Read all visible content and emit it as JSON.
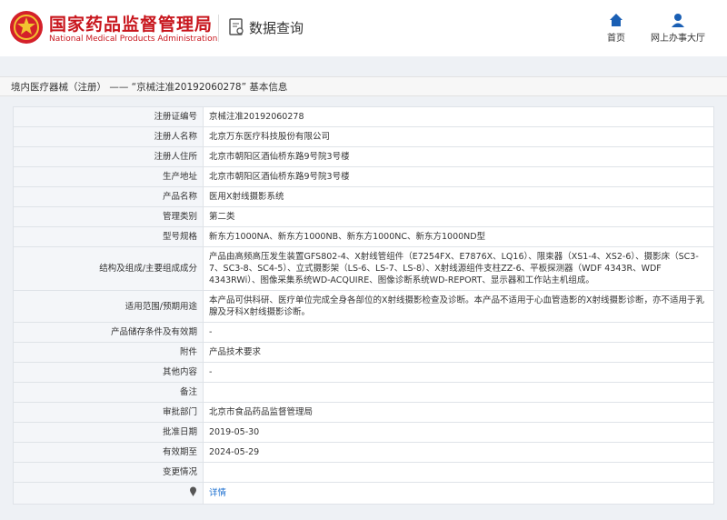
{
  "header": {
    "title": "国家药品监督管理局",
    "subtitle": "National Medical Products Administration",
    "section": "数据查询",
    "nav": [
      "首页",
      "网上办事大厅"
    ]
  },
  "breadcrumb": "境内医疗器械（注册） —— “京械注准20192060278” 基本信息",
  "table": {
    "rows": [
      {
        "label": "注册证编号",
        "value": "京械注准20192060278"
      },
      {
        "label": "注册人名称",
        "value": "北京万东医疗科技股份有限公司"
      },
      {
        "label": "注册人住所",
        "value": "北京市朝阳区酒仙桥东路9号院3号楼"
      },
      {
        "label": "生产地址",
        "value": "北京市朝阳区酒仙桥东路9号院3号楼"
      },
      {
        "label": "产品名称",
        "value": "医用X射线摄影系统"
      },
      {
        "label": "管理类别",
        "value": "第二类"
      },
      {
        "label": "型号规格",
        "value": "新东方1000NA、新东方1000NB、新东方1000NC、新东方1000ND型"
      },
      {
        "label": "结构及组成/主要组成成分",
        "value": "产品由高频高压发生装置GFS802-4、X射线管组件（E7254FX、E7876X、LQ16）、限束器（XS1-4、XS2-6）、摄影床（SC3-7、SC3-8、SC4-5）、立式摄影架（LS-6、LS-7、LS-8）、X射线源组件支柱ZZ-6、平板探测器（WDF 4343R、WDF 4343RWi）、图像采集系统WD-ACQUIRE、图像诊断系统WD-REPORT、显示器和工作站主机组成。"
      },
      {
        "label": "适用范围/预期用途",
        "value": "本产品可供科研、医疗单位完成全身各部位的X射线摄影检查及诊断。本产品不适用于心血管造影的X射线摄影诊断，亦不适用于乳腺及牙科X射线摄影诊断。"
      },
      {
        "label": "产品储存条件及有效期",
        "value": "-"
      },
      {
        "label": "附件",
        "value": "产品技术要求"
      },
      {
        "label": "其他内容",
        "value": "-"
      },
      {
        "label": "备注"
      },
      {
        "label": "审批部门",
        "value": "北京市食品药品监督管理局"
      },
      {
        "label": "批准日期",
        "value": "2019-05-30"
      },
      {
        "label": "有效期至",
        "value": "2024-05-29"
      },
      {
        "label": "变更情况"
      },
      {
        "link": "详情"
      }
    ]
  }
}
